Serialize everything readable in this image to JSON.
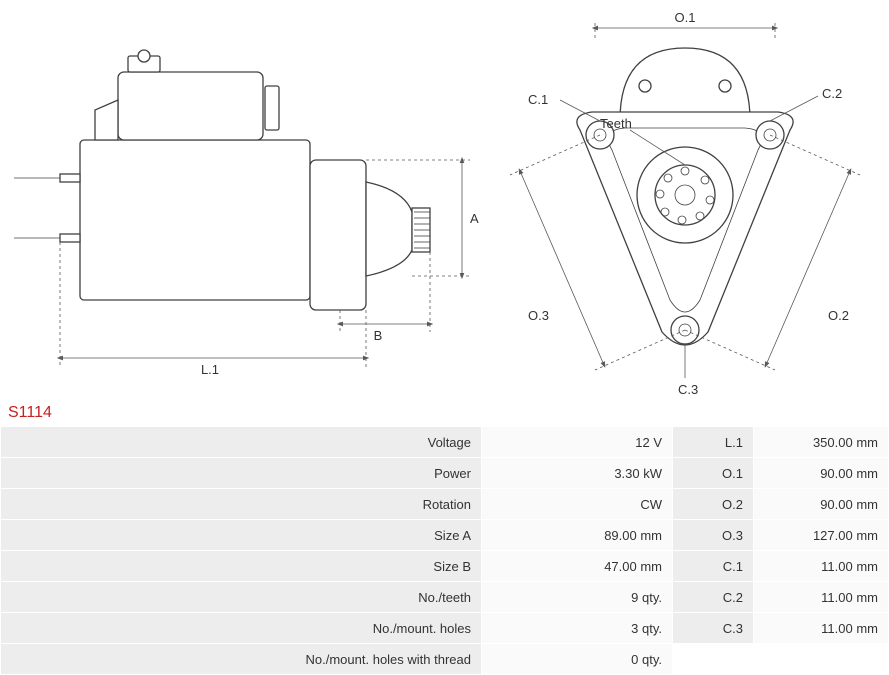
{
  "part_number": "S1114",
  "diagram": {
    "side_labels": {
      "A": "A",
      "B": "B",
      "L1": "L.1"
    },
    "front_labels": {
      "O1": "O.1",
      "O2": "O.2",
      "O3": "O.3",
      "C1": "C.1",
      "C2": "C.2",
      "C3": "C.3",
      "Teeth": "Teeth"
    },
    "colors": {
      "outline": "#404040",
      "dim_line": "#595959",
      "background": "#ffffff"
    },
    "font_size": 13
  },
  "spec_rows": [
    {
      "label": "Voltage",
      "value": "12 V",
      "label2": "L.1",
      "value2": "350.00 mm"
    },
    {
      "label": "Power",
      "value": "3.30 kW",
      "label2": "O.1",
      "value2": "90.00 mm"
    },
    {
      "label": "Rotation",
      "value": "CW",
      "label2": "O.2",
      "value2": "90.00 mm"
    },
    {
      "label": "Size A",
      "value": "89.00 mm",
      "label2": "O.3",
      "value2": "127.00 mm"
    },
    {
      "label": "Size B",
      "value": "47.00 mm",
      "label2": "C.1",
      "value2": "11.00 mm"
    },
    {
      "label": "No./teeth",
      "value": "9 qty.",
      "label2": "C.2",
      "value2": "11.00 mm"
    },
    {
      "label": "No./mount. holes",
      "value": "3 qty.",
      "label2": "C.3",
      "value2": "11.00 mm"
    },
    {
      "label": "No./mount. holes with thread",
      "value": "0 qty.",
      "label2": "",
      "value2": ""
    }
  ],
  "table_style": {
    "row_bg": "#ededed",
    "value_bg": "#fafafa",
    "border_color": "#ffffff",
    "font_size": 13
  }
}
